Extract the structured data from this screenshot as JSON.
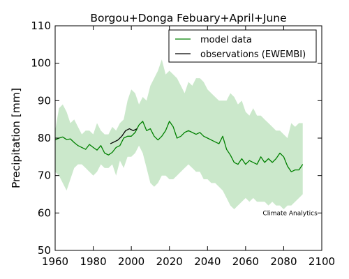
{
  "chart_data": {
    "type": "line",
    "title": "Borgou+Donga Febuary+April+June",
    "xlabel": "",
    "ylabel": "Precipitation [mm]",
    "xlim": [
      1960,
      2100
    ],
    "ylim": [
      50,
      110
    ],
    "xticks": [
      1960,
      1980,
      2000,
      2020,
      2040,
      2060,
      2080,
      2100
    ],
    "yticks": [
      50,
      60,
      70,
      80,
      90,
      100,
      110
    ],
    "legend_position": "top-right",
    "colors": {
      "model": "#008000",
      "band": "#a8d8a8",
      "observations": "#000000"
    },
    "series": [
      {
        "name": "model data",
        "x": [
          1960,
          1962,
          1964,
          1966,
          1968,
          1970,
          1972,
          1974,
          1976,
          1978,
          1980,
          1982,
          1984,
          1986,
          1988,
          1990,
          1992,
          1994,
          1996,
          1998,
          2000,
          2002,
          2004,
          2006,
          2008,
          2010,
          2012,
          2014,
          2016,
          2018,
          2020,
          2022,
          2024,
          2026,
          2028,
          2030,
          2032,
          2034,
          2036,
          2038,
          2040,
          2042,
          2044,
          2046,
          2048,
          2050,
          2052,
          2054,
          2056,
          2058,
          2060,
          2062,
          2064,
          2066,
          2068,
          2070,
          2072,
          2074,
          2076,
          2078,
          2080,
          2082,
          2084,
          2086,
          2088,
          2090
        ],
        "y": [
          79.5,
          80.0,
          80.3,
          79.6,
          79.8,
          78.8,
          78.0,
          77.5,
          77.0,
          78.3,
          77.5,
          76.8,
          78.0,
          76.0,
          75.5,
          76.2,
          77.5,
          78.0,
          80.0,
          80.5,
          80.5,
          81.5,
          83.5,
          84.5,
          82.0,
          82.5,
          80.5,
          79.5,
          80.5,
          82.0,
          84.5,
          83.0,
          80.0,
          80.5,
          81.5,
          82.0,
          81.5,
          81.0,
          81.5,
          80.5,
          80.0,
          79.5,
          79.0,
          78.5,
          80.5,
          77.0,
          75.5,
          73.5,
          73.0,
          74.5,
          73.0,
          74.0,
          73.5,
          73.0,
          75.0,
          73.5,
          74.5,
          73.5,
          74.5,
          76.0,
          75.0,
          72.5,
          71.0,
          71.5,
          71.5,
          73.0
        ]
      },
      {
        "name": "observations (EWEMBI)",
        "x": [
          1989,
          1991,
          1993,
          1995,
          1997,
          1999,
          2001,
          2003
        ],
        "y": [
          78.5,
          79.0,
          79.5,
          80.5,
          82.0,
          82.5,
          82.0,
          82.5
        ]
      }
    ],
    "band": {
      "x": [
        1960,
        1962,
        1964,
        1966,
        1968,
        1970,
        1972,
        1974,
        1976,
        1978,
        1980,
        1982,
        1984,
        1986,
        1988,
        1990,
        1992,
        1994,
        1996,
        1998,
        2000,
        2002,
        2004,
        2006,
        2008,
        2010,
        2012,
        2014,
        2016,
        2018,
        2020,
        2022,
        2024,
        2026,
        2028,
        2030,
        2032,
        2034,
        2036,
        2038,
        2040,
        2042,
        2044,
        2046,
        2048,
        2050,
        2052,
        2054,
        2056,
        2058,
        2060,
        2062,
        2064,
        2066,
        2068,
        2070,
        2072,
        2074,
        2076,
        2078,
        2080,
        2082,
        2084,
        2086,
        2088,
        2090
      ],
      "upper": [
        82,
        88,
        89,
        87,
        84,
        85,
        83,
        81,
        82,
        82,
        81,
        84,
        82,
        81,
        81,
        83,
        82,
        84,
        85,
        90,
        93,
        92,
        89,
        91,
        90,
        94,
        96,
        98,
        101,
        97,
        98,
        97,
        96,
        94,
        92,
        95,
        94,
        96,
        96,
        95,
        93,
        92,
        91,
        90,
        90,
        90,
        92,
        91,
        89,
        90,
        87,
        86,
        88,
        86,
        86,
        85,
        84,
        83,
        82,
        82,
        81,
        80,
        84,
        83,
        84,
        84
      ],
      "lower": [
        71,
        70,
        68,
        66,
        69,
        72,
        73,
        73,
        72,
        71,
        70,
        71,
        73,
        72,
        72,
        73,
        70,
        74,
        72,
        75,
        75,
        76,
        78,
        76,
        72,
        68,
        67,
        68,
        70,
        70,
        69,
        69,
        70,
        71,
        72,
        73,
        72,
        71,
        71,
        69,
        69,
        68,
        68,
        67,
        66,
        64,
        62,
        61,
        62,
        63,
        64,
        63,
        64,
        63,
        63,
        63,
        62,
        63,
        62,
        62,
        61,
        62,
        62,
        63,
        64,
        65
      ]
    },
    "annotations": [
      {
        "text": "Climate Analytics",
        "x": 2069,
        "y": 60
      }
    ]
  }
}
